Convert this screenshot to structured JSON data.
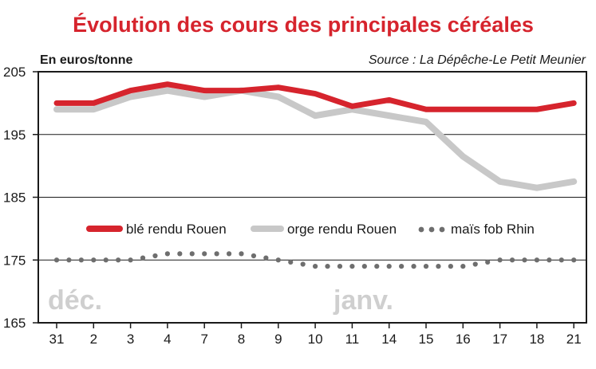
{
  "chart_data": {
    "type": "line",
    "title": "Évolution des cours des principales céréales",
    "ylabel": "En euros/tonne",
    "source": "Source : La Dépêche-Le Petit Meunier",
    "ylim": [
      165,
      205
    ],
    "yticks": [
      "205",
      "195",
      "185",
      "175",
      "165"
    ],
    "categories": [
      "31",
      "2",
      "3",
      "4",
      "7",
      "8",
      "9",
      "10",
      "11",
      "14",
      "15",
      "16",
      "17",
      "18",
      "21"
    ],
    "month_labels": [
      "déc.",
      "janv."
    ],
    "grid": true,
    "legend_position": "center",
    "series": [
      {
        "name": "blé rendu Rouen",
        "color": "#d6242d",
        "style": "solid",
        "values": [
          200,
          200,
          202,
          203,
          202,
          202,
          202.5,
          201.5,
          199.5,
          200.5,
          199,
          199,
          199,
          199,
          200
        ]
      },
      {
        "name": "orge rendu Rouen",
        "color": "#c8c8c8",
        "style": "solid",
        "values": [
          199,
          199,
          201,
          202,
          201,
          202,
          201,
          198,
          199,
          198,
          197,
          191.5,
          187.5,
          186.5,
          187.5
        ]
      },
      {
        "name": "maïs fob Rhin",
        "color": "#6e6e6e",
        "style": "dotted",
        "values": [
          175,
          175,
          175,
          176,
          176,
          176,
          175,
          174,
          174,
          174,
          174,
          174,
          175,
          175,
          175
        ]
      }
    ]
  }
}
